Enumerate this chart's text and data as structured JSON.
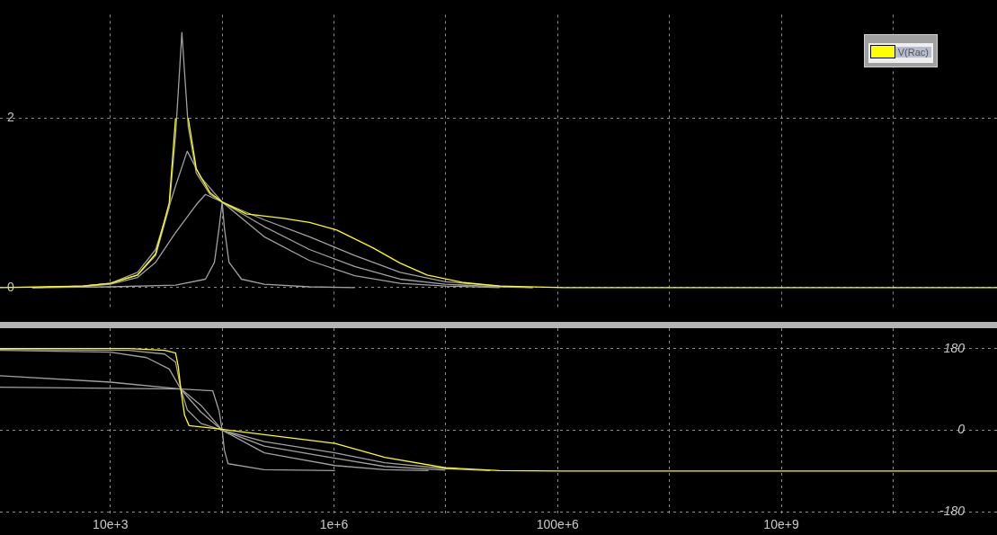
{
  "chart_data": [
    {
      "type": "line",
      "legend": "top right",
      "log": "x",
      "grid": true,
      "tick_labels": "y",
      "xlim": [
        1030,
        850000000000
      ],
      "xticks": [
        {
          "value": 10000,
          "label": null
        },
        {
          "value": 100000,
          "label": null
        },
        {
          "value": 1000000,
          "label": null
        },
        {
          "value": 10000000,
          "label": null
        },
        {
          "value": 100000000,
          "label": null
        },
        {
          "value": 1000000000,
          "label": null
        },
        {
          "value": 10000000000,
          "label": null
        },
        {
          "value": 100000000000,
          "label": null
        }
      ],
      "ylim": [
        -0.23,
        3.22
      ],
      "yticks": [
        0,
        2
      ],
      "series": [
        {
          "name": "V(Rac)",
          "color": "#ffff00",
          "x": [
            1030,
            2710,
            5710,
            10000,
            17500,
            25400,
            33600,
            38300,
            40500,
            46100,
            49700,
            58700,
            77800,
            100000,
            164000,
            345000,
            604000,
            1060000,
            2230000,
            3900000,
            6800000,
            14400000,
            30300000,
            112000000,
            850000000000
          ],
          "values": [
            0,
            0.01,
            0.02,
            0.05,
            0.15,
            0.4,
            1.0,
            2.0,
            null,
            null,
            2.0,
            1.4,
            1.12,
            1.01,
            0.87,
            0.82,
            0.77,
            0.68,
            0.47,
            0.29,
            0.15,
            0.06,
            0.02,
            0,
            0
          ]
        },
        {
          "color": "#a0a0a0",
          "x": [
            2000,
            5710,
            10000,
            17500,
            25400,
            33600,
            38300,
            43600,
            49700,
            58700,
            77800,
            100000,
            238000,
            604000,
            1530000,
            3900000,
            9900000,
            30300000,
            60000000
          ],
          "values": [
            0,
            0.02,
            0.05,
            0.15,
            0.38,
            0.95,
            1.8,
            3.01,
            1.9,
            1.35,
            1.1,
            1.01,
            0.8,
            0.6,
            0.38,
            0.18,
            0.07,
            0.02,
            0
          ]
        },
        {
          "color": "#a0a0a0",
          "x": [
            2000,
            5710,
            10000,
            17500,
            25400,
            38300,
            48700,
            64500,
            100000,
            238000,
            604000,
            1530000,
            3900000,
            9900000,
            30300000,
            60000000
          ],
          "values": [
            0,
            0.02,
            0.05,
            0.18,
            0.45,
            1.2,
            1.61,
            1.3,
            1.01,
            0.72,
            0.45,
            0.25,
            0.1,
            0.04,
            0.01,
            0
          ]
        },
        {
          "color": "#a0a0a0",
          "x": [
            2000,
            5710,
            10000,
            17500,
            25400,
            38300,
            58700,
            70800,
            100000,
            238000,
            604000,
            1530000,
            3900000,
            9900000,
            30300000
          ],
          "values": [
            0,
            0.01,
            0.04,
            0.12,
            0.3,
            0.65,
            0.98,
            1.1,
            1.01,
            0.6,
            0.32,
            0.14,
            0.05,
            0.02,
            0
          ]
        },
        {
          "color": "#a0a0a0",
          "x": [
            2000,
            10000,
            38300,
            70800,
            85300,
            93700,
            100000,
            104700,
            115000,
            149000,
            238000,
            604000,
            1530000
          ],
          "values": [
            0,
            0.01,
            0.03,
            0.1,
            0.3,
            0.7,
            1.01,
            0.7,
            0.3,
            0.1,
            0.04,
            0.01,
            0
          ]
        }
      ]
    },
    {
      "type": "line",
      "log": "x",
      "grid": true,
      "xlim": [
        1030,
        850000000000
      ],
      "xticks": [
        {
          "value": 10000,
          "label": "10e+3"
        },
        {
          "value": 100000,
          "label": null
        },
        {
          "value": 1000000,
          "label": "1e+6"
        },
        {
          "value": 10000000,
          "label": null
        },
        {
          "value": 100000000,
          "label": "100e+6"
        },
        {
          "value": 1000000000,
          "label": null
        },
        {
          "value": 10000000000,
          "label": "10e+9"
        },
        {
          "value": 100000000000,
          "label": null
        }
      ],
      "ylim": [
        -190,
        225
      ],
      "yticks": [
        180,
        0,
        -180
      ],
      "series": [
        {
          "color": "#ffff00",
          "x": [
            1030,
            14500,
            30600,
            38300,
            40500,
            42800,
            46100,
            50600,
            100000,
            238000,
            1020000,
            2840000,
            9900000,
            30300000,
            112000000,
            850000000000
          ],
          "values": [
            180,
            180,
            176,
            170,
            140,
            87,
            33,
            10,
            2,
            -10,
            -29,
            -60,
            -83,
            -89,
            -90,
            -90
          ]
        },
        {
          "color": "#a0a0a0",
          "x": [
            1030,
            14500,
            30600,
            38300,
            42800,
            48700,
            64500,
            100000,
            238000,
            1020000,
            2840000,
            9900000,
            25000000
          ],
          "values": [
            178,
            176,
            168,
            150,
            90,
            45,
            15,
            0,
            -25,
            -50,
            -72,
            -85,
            -89
          ]
        },
        {
          "color": "#a0a0a0",
          "x": [
            1030,
            10000,
            21100,
            33600,
            42800,
            64500,
            100000,
            238000,
            1020000,
            2840000,
            9900000
          ],
          "values": [
            176,
            172,
            160,
            135,
            90,
            40,
            0,
            -35,
            -62,
            -80,
            -88
          ]
        },
        {
          "color": "#a0a0a0",
          "x": [
            1030,
            10000,
            42800,
            64500,
            100000,
            238000,
            1020000,
            2840000,
            7000000
          ],
          "values": [
            120,
            106,
            91,
            55,
            0,
            -50,
            -78,
            -87,
            -89
          ]
        },
        {
          "color": "#a0a0a0",
          "x": [
            1030,
            42800,
            82200,
            93700,
            100000,
            104700,
            113000,
            238000,
            1020000
          ],
          "values": [
            95,
            91,
            87,
            43,
            0,
            -45,
            -74,
            -87,
            -89
          ]
        }
      ]
    }
  ]
}
